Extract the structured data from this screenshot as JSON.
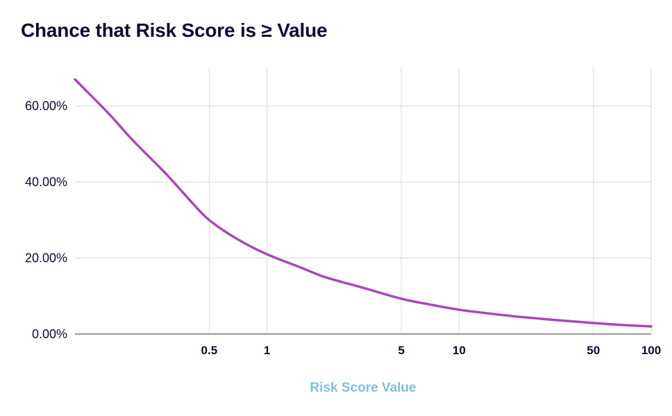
{
  "chart_data": {
    "type": "line",
    "title": "Chance that Risk Score is ≥ Value",
    "xlabel": "Risk Score Value",
    "ylabel": "",
    "x_scale": "log",
    "xlim": [
      0.1,
      100
    ],
    "ylim": [
      0,
      0.7
    ],
    "x_ticks": [
      {
        "value": 0.5,
        "label": "0.5"
      },
      {
        "value": 1,
        "label": "1"
      },
      {
        "value": 5,
        "label": "5"
      },
      {
        "value": 10,
        "label": "10"
      },
      {
        "value": 50,
        "label": "50"
      },
      {
        "value": 100,
        "label": "100"
      }
    ],
    "y_ticks": [
      {
        "value": 0,
        "label": "0.00%"
      },
      {
        "value": 0.2,
        "label": "20.00%"
      },
      {
        "value": 0.4,
        "label": "40.00%"
      },
      {
        "value": 0.6,
        "label": "60.00%"
      }
    ],
    "grid": true,
    "legend": "none",
    "series": [
      {
        "color": "#ab47bc",
        "x": [
          0.1,
          0.15,
          0.2,
          0.3,
          0.4,
          0.5,
          0.7,
          1,
          1.5,
          2,
          3,
          5,
          7,
          10,
          15,
          20,
          30,
          50,
          70,
          100
        ],
        "y": [
          0.67,
          0.58,
          0.51,
          0.42,
          0.35,
          0.3,
          0.25,
          0.21,
          0.175,
          0.15,
          0.125,
          0.093,
          0.078,
          0.064,
          0.053,
          0.046,
          0.038,
          0.029,
          0.024,
          0.02
        ]
      }
    ],
    "colors": {
      "title": "#0f0a2e",
      "ticks": "#0f0a2e",
      "xlabel": "#7fbfdf",
      "grid": "#d9d9d9",
      "axis": "#333333"
    }
  }
}
